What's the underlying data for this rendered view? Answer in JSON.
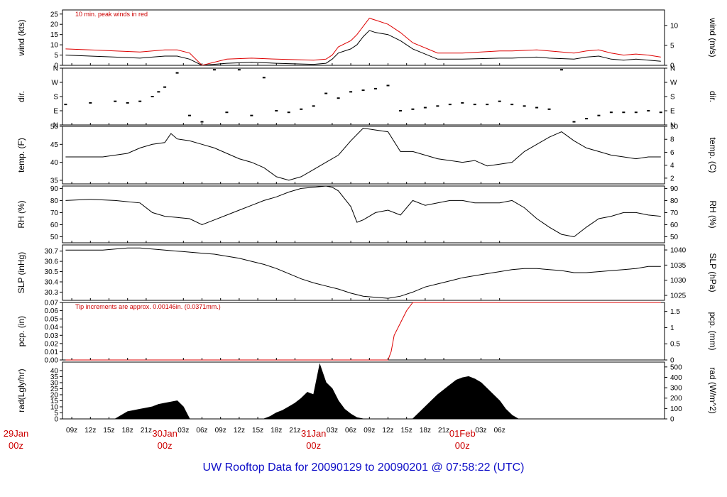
{
  "title": "UW Rooftop Data for 20090129  to  20090201 @ 07:58:22  (UTC)",
  "chart_data": [
    {
      "type": "line",
      "panel": "wind",
      "ylabel": "wind (kts)",
      "ylabel_right": "wind (m/s)",
      "ylim": [
        0,
        27
      ],
      "yticks": [
        0,
        5,
        10,
        15,
        20,
        25
      ],
      "yticks_right": [
        0,
        5,
        10
      ],
      "annotation": "10 min. peak winds in red",
      "series": [
        {
          "x": [
            8,
            12,
            16,
            20,
            22,
            24,
            26,
            28,
            30,
            34,
            38,
            42,
            48,
            50,
            51,
            52,
            54,
            55,
            56,
            57,
            58,
            60,
            62,
            64,
            68,
            72,
            78,
            80,
            84,
            86,
            90,
            92,
            94,
            96,
            98,
            100,
            102,
            104
          ],
          "values": [
            5,
            4.5,
            4,
            3.5,
            4,
            4.5,
            4.5,
            3,
            0,
            1,
            1.5,
            1,
            0.5,
            1,
            3,
            6,
            8,
            10,
            14,
            17,
            16,
            15,
            12,
            8,
            3,
            3,
            3.5,
            3.5,
            4,
            3.5,
            3,
            4,
            4.5,
            3,
            2.5,
            3,
            2.5,
            2
          ]
        },
        {
          "x": [
            8,
            12,
            16,
            20,
            22,
            24,
            26,
            28,
            30,
            34,
            38,
            42,
            48,
            50,
            51,
            52,
            54,
            55,
            56,
            57,
            58,
            60,
            62,
            64,
            68,
            72,
            78,
            80,
            84,
            86,
            90,
            92,
            94,
            96,
            98,
            100,
            102,
            104
          ],
          "values": [
            8,
            7.5,
            7,
            6.5,
            7,
            7.5,
            7.5,
            6,
            0,
            3,
            3.5,
            3,
            2.5,
            3,
            5,
            9,
            12,
            15,
            19,
            23,
            22,
            20,
            16,
            11,
            6,
            6,
            7,
            7,
            7.5,
            7,
            6,
            7,
            7.5,
            6,
            5,
            5.5,
            5,
            4
          ]
        }
      ]
    },
    {
      "type": "scatter",
      "panel": "dir",
      "ylabel": "dir.",
      "ylabel_right": "dir.",
      "ylim": [
        0,
        360
      ],
      "ytick_labels": [
        "N",
        "E",
        "S",
        "W",
        "N"
      ],
      "x": [
        8,
        12,
        16,
        18,
        20,
        22,
        23,
        24,
        26,
        28,
        30,
        32,
        34,
        36,
        38,
        40,
        42,
        44,
        46,
        48,
        50,
        52,
        54,
        56,
        58,
        60,
        62,
        64,
        66,
        68,
        70,
        72,
        74,
        76,
        78,
        80,
        82,
        84,
        86,
        88,
        90,
        92,
        94,
        96,
        98,
        100,
        102,
        104
      ],
      "values": [
        130,
        140,
        150,
        140,
        150,
        180,
        210,
        240,
        330,
        60,
        20,
        350,
        80,
        350,
        60,
        300,
        90,
        80,
        100,
        120,
        200,
        170,
        210,
        220,
        230,
        250,
        90,
        100,
        110,
        120,
        130,
        140,
        130,
        130,
        150,
        130,
        120,
        110,
        100,
        350,
        20,
        40,
        60,
        80,
        80,
        80,
        90,
        80
      ]
    },
    {
      "type": "line",
      "panel": "temp",
      "ylabel": "temp. (F)",
      "ylabel_right": "temp. (C)",
      "ylim": [
        34,
        50
      ],
      "yticks": [
        35,
        40,
        45,
        50
      ],
      "yticks_right": [
        2,
        4,
        6,
        8,
        10
      ],
      "x": [
        8,
        10,
        12,
        14,
        16,
        18,
        20,
        22,
        24,
        25,
        26,
        28,
        30,
        32,
        34,
        36,
        38,
        40,
        42,
        44,
        46,
        48,
        50,
        52,
        54,
        56,
        58,
        60,
        62,
        64,
        66,
        68,
        70,
        72,
        74,
        76,
        78,
        80,
        82,
        84,
        86,
        88,
        90,
        92,
        94,
        96,
        98,
        100,
        102,
        104
      ],
      "values": [
        41.5,
        41.5,
        41.5,
        41.5,
        42,
        42.5,
        44,
        45,
        45.5,
        48,
        46.5,
        46,
        45,
        44,
        42.5,
        41,
        40,
        38.5,
        36,
        35,
        36,
        38,
        40,
        42,
        46,
        49.5,
        49,
        48.5,
        43,
        43,
        42,
        41,
        40.5,
        40,
        40.5,
        39,
        39.5,
        40,
        43,
        45,
        47,
        48.5,
        46,
        44,
        43,
        42,
        41.5,
        41,
        41.5,
        41.5
      ]
    },
    {
      "type": "line",
      "panel": "RH",
      "ylabel": "RH (%)",
      "ylabel_right": "RH (%)",
      "ylim": [
        45,
        92
      ],
      "yticks": [
        50,
        60,
        70,
        80,
        90
      ],
      "x": [
        8,
        12,
        16,
        20,
        22,
        24,
        26,
        28,
        30,
        32,
        34,
        36,
        38,
        40,
        42,
        44,
        46,
        48,
        50,
        51,
        52,
        54,
        55,
        56,
        58,
        60,
        62,
        64,
        66,
        68,
        70,
        72,
        74,
        76,
        78,
        80,
        82,
        84,
        86,
        88,
        90,
        92,
        94,
        96,
        98,
        100,
        102,
        104
      ],
      "values": [
        80,
        81,
        80,
        78,
        70,
        67,
        66,
        65,
        60,
        64,
        68,
        72,
        76,
        80,
        83,
        87,
        90,
        91,
        92,
        91,
        88,
        75,
        62,
        64,
        70,
        72,
        68,
        80,
        76,
        78,
        80,
        80,
        78,
        78,
        78,
        80,
        74,
        65,
        58,
        52,
        50,
        58,
        65,
        67,
        70,
        70,
        68,
        67
      ]
    },
    {
      "type": "line",
      "panel": "SLP",
      "ylabel": "SLP (inHg)",
      "ylabel_right": "SLP (hPa)",
      "ylim": [
        30.22,
        30.76
      ],
      "yticks": [
        30.3,
        30.4,
        30.5,
        30.6,
        30.7
      ],
      "yticks_right": [
        1025,
        1030,
        1035,
        1040
      ],
      "x": [
        8,
        10,
        12,
        14,
        16,
        18,
        20,
        22,
        24,
        26,
        28,
        30,
        32,
        34,
        36,
        38,
        40,
        42,
        44,
        46,
        48,
        50,
        52,
        54,
        56,
        58,
        60,
        62,
        64,
        66,
        68,
        70,
        72,
        74,
        76,
        78,
        80,
        82,
        84,
        86,
        88,
        90,
        92,
        94,
        96,
        98,
        100,
        102,
        104
      ],
      "values": [
        30.71,
        30.71,
        30.71,
        30.71,
        30.72,
        30.73,
        30.73,
        30.72,
        30.71,
        30.7,
        30.69,
        30.68,
        30.67,
        30.65,
        30.63,
        30.6,
        30.57,
        30.53,
        30.48,
        30.43,
        30.39,
        30.36,
        30.33,
        30.29,
        30.26,
        30.25,
        30.24,
        30.26,
        30.3,
        30.35,
        30.38,
        30.41,
        30.44,
        30.46,
        30.48,
        30.5,
        30.52,
        30.53,
        30.53,
        30.52,
        30.51,
        30.49,
        30.49,
        30.5,
        30.51,
        30.52,
        30.53,
        30.55,
        30.55
      ]
    },
    {
      "type": "line",
      "panel": "pcp",
      "ylabel": "pcp. (in)",
      "ylabel_right": "pcp. (mm)",
      "ylim": [
        0,
        0.07
      ],
      "yticks": [
        0.0,
        0.01,
        0.02,
        0.03,
        0.04,
        0.05,
        0.06,
        0.07
      ],
      "yticks_right": [
        0,
        0.5,
        1,
        1.5
      ],
      "annotation": "Tip increments are approx. 0.00146in. (0.0371mm.)",
      "x": [
        8,
        60,
        60.5,
        61,
        62,
        63,
        64,
        104
      ],
      "values": [
        0,
        0,
        0.01,
        0.03,
        0.045,
        0.06,
        0.07,
        0.07
      ]
    },
    {
      "type": "area",
      "panel": "rad",
      "ylabel": "rad(Lgly/hr)",
      "ylabel_right": "rad (W/m^2)",
      "ylim": [
        0,
        47
      ],
      "yticks": [
        0,
        5,
        10,
        15,
        20,
        25,
        30,
        35,
        40
      ],
      "yticks_right": [
        0,
        100,
        200,
        300,
        400,
        500
      ],
      "x": [
        16,
        17,
        18,
        19,
        20,
        21,
        22,
        23,
        24,
        25,
        26,
        27,
        28,
        40,
        41,
        42,
        43,
        44,
        45,
        46,
        47,
        48,
        49,
        50,
        51,
        52,
        53,
        54,
        55,
        56,
        64,
        65,
        66,
        67,
        68,
        69,
        70,
        71,
        72,
        73,
        74,
        75,
        76,
        77,
        78,
        79,
        80,
        81
      ],
      "values": [
        0,
        3,
        6,
        7,
        8,
        9,
        10,
        12,
        13,
        14,
        15,
        10,
        0,
        0,
        2,
        5,
        7,
        10,
        13,
        17,
        22,
        20,
        45,
        30,
        25,
        15,
        8,
        4,
        1,
        0,
        0,
        5,
        10,
        15,
        20,
        24,
        28,
        32,
        34,
        35,
        33,
        30,
        25,
        20,
        15,
        8,
        3,
        0
      ]
    },
    {
      "type": "axis",
      "panel": "time",
      "xlim": [
        7.5,
        104.6
      ],
      "hour_ticks": [
        {
          "x": 9,
          "label": "09z"
        },
        {
          "x": 12,
          "label": "12z"
        },
        {
          "x": 15,
          "label": "15z"
        },
        {
          "x": 18,
          "label": "18z"
        },
        {
          "x": 21,
          "label": "21z"
        },
        {
          "x": 27,
          "label": "03z"
        },
        {
          "x": 30,
          "label": "06z"
        },
        {
          "x": 33,
          "label": "09z"
        },
        {
          "x": 36,
          "label": "12z"
        },
        {
          "x": 39,
          "label": "15z"
        },
        {
          "x": 42,
          "label": "18z"
        },
        {
          "x": 45,
          "label": "21z"
        },
        {
          "x": 51,
          "label": "03z"
        },
        {
          "x": 54,
          "label": "06z"
        },
        {
          "x": 57,
          "label": "09z"
        },
        {
          "x": 60,
          "label": "12z"
        },
        {
          "x": 63,
          "label": "15z"
        },
        {
          "x": 66,
          "label": "18z"
        },
        {
          "x": 69,
          "label": "21z"
        },
        {
          "x": 75,
          "label": "03z"
        },
        {
          "x": 78,
          "label": "06z"
        }
      ],
      "day_ticks": [
        {
          "x": 0,
          "day": "29Jan",
          "hour": "00z"
        },
        {
          "x": 24,
          "day": "30Jan",
          "hour": "00z"
        },
        {
          "x": 48,
          "day": "31Jan",
          "hour": "00z"
        },
        {
          "x": 72,
          "day": "01Feb",
          "hour": "00z"
        }
      ]
    }
  ]
}
